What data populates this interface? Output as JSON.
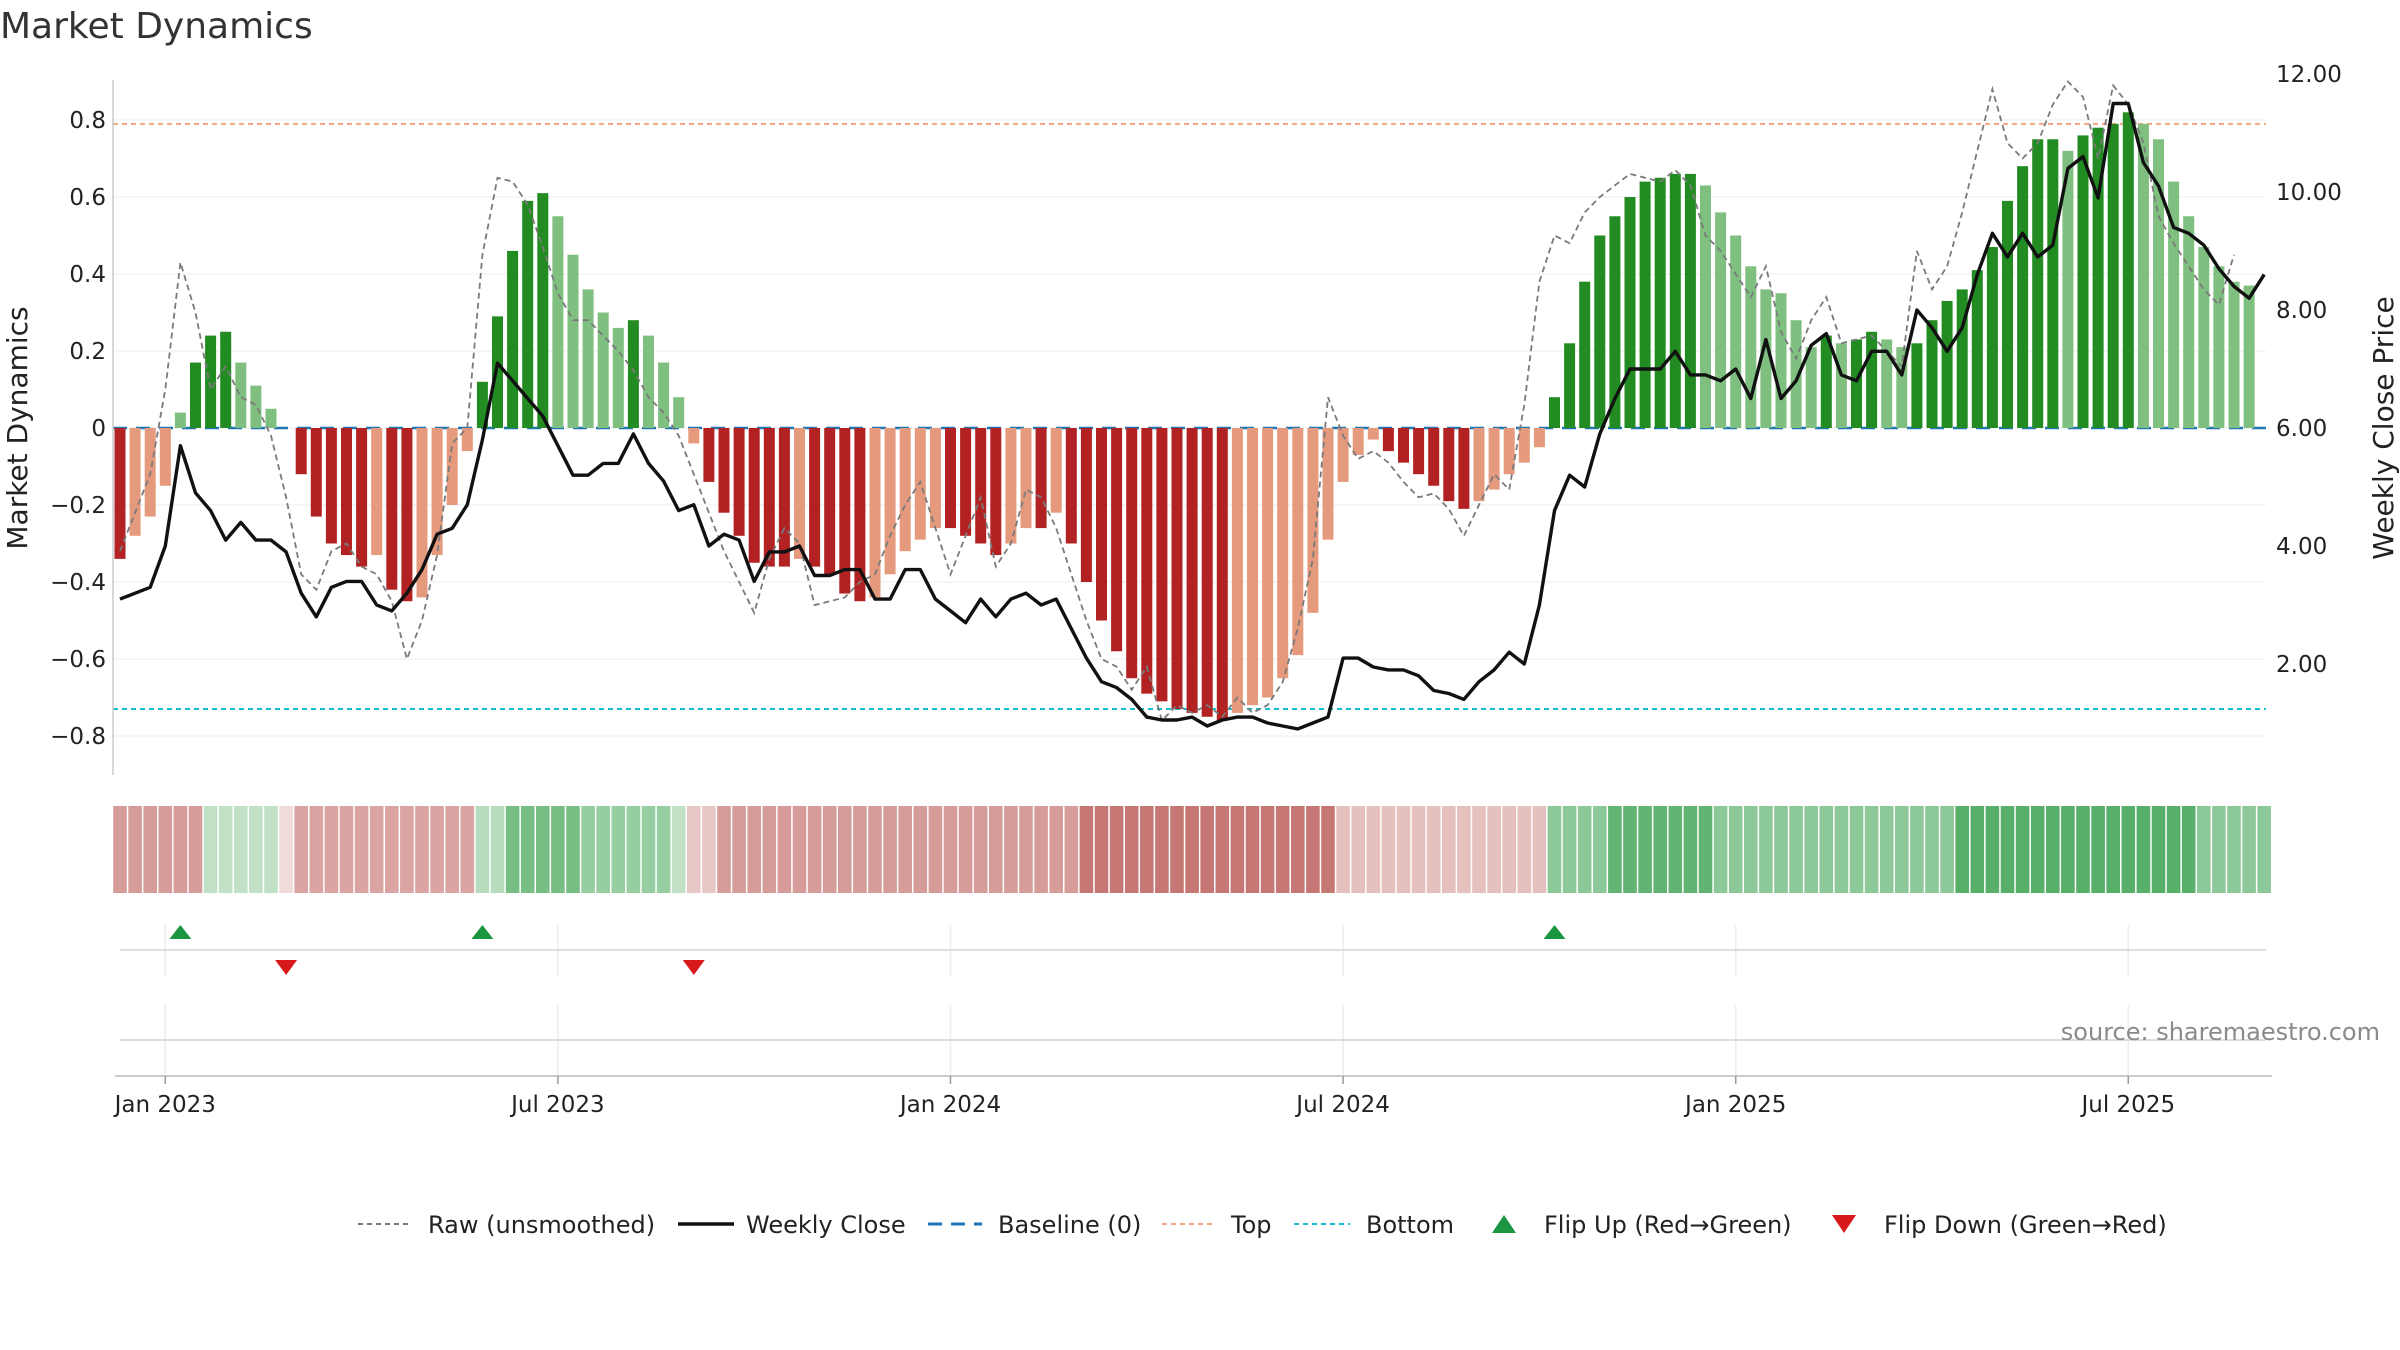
{
  "chart_data": {
    "type": "bar",
    "title": "Market Dynamics",
    "ylabel_left": "Market Dynamics",
    "ylabel_right": "Weekly Close Price",
    "source": "source: sharemaestro.com",
    "ylim_left": [
      -0.9,
      0.9
    ],
    "ylim_right": [
      0.8,
      12.4
    ],
    "left_ticks": [
      "0.8",
      "0.6",
      "0.4",
      "0.2",
      "0",
      "−0.2",
      "−0.4",
      "−0.6",
      "−0.8"
    ],
    "left_tick_values": [
      0.8,
      0.6,
      0.4,
      0.2,
      0,
      -0.2,
      -0.4,
      -0.6,
      -0.8
    ],
    "right_ticks": [
      "12.00",
      "10.00",
      "8.00",
      "6.00",
      "4.00",
      "2.00"
    ],
    "right_tick_values": [
      12,
      10,
      8,
      6,
      4,
      2
    ],
    "x_ticks": [
      "Jan 2023",
      "Jul 2023",
      "Jan 2024",
      "Jul 2024",
      "Jan 2025",
      "Jul 2025"
    ],
    "x_tick_index": [
      3,
      29,
      55,
      81,
      107,
      133
    ],
    "top_level": 0.79,
    "bottom_level": -0.73,
    "colors": {
      "strong_up": "#228b22",
      "weak_up": "#7fbf7f",
      "strong_down": "#b22222",
      "weak_down": "#e59a7d",
      "raw": "#7a7a7a",
      "close": "#111111",
      "baseline": "#1f77b4",
      "top": "#f4a582",
      "bottom": "#17becf",
      "flip_up": "#1a9641",
      "flip_down": "#d7191c"
    },
    "series": [
      {
        "name": "Market Dynamics",
        "values": [
          -0.34,
          -0.28,
          -0.23,
          -0.15,
          0.04,
          0.17,
          0.24,
          0.25,
          0.17,
          0.11,
          0.05,
          0,
          -0.12,
          -0.23,
          -0.3,
          -0.33,
          -0.36,
          -0.33,
          -0.42,
          -0.45,
          -0.44,
          -0.33,
          -0.2,
          -0.06,
          0.12,
          0.29,
          0.46,
          0.59,
          0.61,
          0.55,
          0.45,
          0.36,
          0.3,
          0.26,
          0.28,
          0.24,
          0.17,
          0.08,
          -0.04,
          -0.14,
          -0.22,
          -0.28,
          -0.35,
          -0.36,
          -0.36,
          -0.34,
          -0.36,
          -0.38,
          -0.43,
          -0.45,
          -0.44,
          -0.38,
          -0.32,
          -0.29,
          -0.26,
          -0.26,
          -0.28,
          -0.3,
          -0.33,
          -0.3,
          -0.26,
          -0.26,
          -0.22,
          -0.3,
          -0.4,
          -0.5,
          -0.58,
          -0.65,
          -0.69,
          -0.71,
          -0.73,
          -0.74,
          -0.75,
          -0.76,
          -0.74,
          -0.72,
          -0.7,
          -0.65,
          -0.59,
          -0.48,
          -0.29,
          -0.14,
          -0.07,
          -0.03,
          -0.06,
          -0.09,
          -0.12,
          -0.15,
          -0.19,
          -0.21,
          -0.19,
          -0.16,
          -0.12,
          -0.09,
          -0.05,
          0.08,
          0.22,
          0.38,
          0.5,
          0.55,
          0.6,
          0.64,
          0.65,
          0.66,
          0.66,
          0.63,
          0.56,
          0.5,
          0.42,
          0.36,
          0.35,
          0.28,
          0.21,
          0.24,
          0.22,
          0.23,
          0.25,
          0.23,
          0.21,
          0.22,
          0.28,
          0.33,
          0.36,
          0.41,
          0.47,
          0.59,
          0.68,
          0.75,
          0.75,
          0.72,
          0.76,
          0.78,
          0.79,
          0.82,
          0.79,
          0.75,
          0.64,
          0.55,
          0.47,
          0.42,
          0.38,
          0.37
        ]
      },
      {
        "name": "Raw (unsmoothed)",
        "values": [
          -0.32,
          -0.22,
          -0.12,
          0.1,
          0.43,
          0.3,
          0.1,
          0.16,
          0.08,
          0.06,
          -0.02,
          -0.18,
          -0.38,
          -0.42,
          -0.32,
          -0.3,
          -0.36,
          -0.38,
          -0.45,
          -0.6,
          -0.5,
          -0.33,
          -0.04,
          0.0,
          0.45,
          0.65,
          0.64,
          0.58,
          0.47,
          0.35,
          0.28,
          0.28,
          0.24,
          0.2,
          0.15,
          0.08,
          0.04,
          -0.02,
          -0.12,
          -0.22,
          -0.32,
          -0.4,
          -0.48,
          -0.34,
          -0.26,
          -0.3,
          -0.46,
          -0.45,
          -0.44,
          -0.4,
          -0.38,
          -0.28,
          -0.2,
          -0.14,
          -0.26,
          -0.38,
          -0.28,
          -0.18,
          -0.36,
          -0.3,
          -0.16,
          -0.18,
          -0.26,
          -0.38,
          -0.5,
          -0.6,
          -0.62,
          -0.68,
          -0.62,
          -0.76,
          -0.72,
          -0.74,
          -0.72,
          -0.75,
          -0.7,
          -0.74,
          -0.72,
          -0.66,
          -0.52,
          -0.34,
          0.08,
          -0.02,
          -0.08,
          -0.06,
          -0.09,
          -0.14,
          -0.18,
          -0.17,
          -0.21,
          -0.28,
          -0.2,
          -0.12,
          -0.16,
          0.06,
          0.38,
          0.5,
          0.48,
          0.56,
          0.6,
          0.63,
          0.66,
          0.65,
          0.64,
          0.67,
          0.63,
          0.5,
          0.46,
          0.4,
          0.34,
          0.42,
          0.25,
          0.18,
          0.28,
          0.34,
          0.22,
          0.23,
          0.24,
          0.2,
          0.16,
          0.46,
          0.36,
          0.42,
          0.56,
          0.72,
          0.88,
          0.74,
          0.7,
          0.74,
          0.84,
          0.9,
          0.86,
          0.7,
          0.89,
          0.84,
          0.74,
          0.55,
          0.48,
          0.42,
          0.36,
          0.32,
          0.45
        ]
      },
      {
        "name": "Weekly Close",
        "values": [
          3.1,
          3.2,
          3.3,
          4.0,
          5.7,
          4.9,
          4.6,
          4.1,
          4.4,
          4.1,
          4.1,
          3.9,
          3.2,
          2.8,
          3.3,
          3.4,
          3.4,
          3.0,
          2.9,
          3.2,
          3.6,
          4.2,
          4.3,
          4.7,
          5.8,
          7.1,
          6.8,
          6.5,
          6.2,
          5.7,
          5.2,
          5.2,
          5.4,
          5.4,
          5.9,
          5.4,
          5.1,
          4.6,
          4.7,
          4.0,
          4.2,
          4.1,
          3.4,
          3.9,
          3.9,
          4.0,
          3.5,
          3.5,
          3.6,
          3.6,
          3.1,
          3.1,
          3.6,
          3.6,
          3.1,
          2.9,
          2.7,
          3.1,
          2.8,
          3.1,
          3.2,
          3.0,
          3.1,
          2.6,
          2.1,
          1.7,
          1.6,
          1.4,
          1.1,
          1.05,
          1.05,
          1.1,
          0.95,
          1.05,
          1.1,
          1.1,
          1.0,
          0.95,
          0.9,
          1.0,
          1.1,
          2.1,
          2.1,
          1.95,
          1.9,
          1.9,
          1.8,
          1.55,
          1.5,
          1.4,
          1.7,
          1.9,
          2.2,
          2.0,
          3.0,
          4.6,
          5.2,
          5.0,
          5.9,
          6.5,
          7.0,
          7.0,
          7.0,
          7.3,
          6.9,
          6.9,
          6.8,
          7.0,
          6.5,
          7.5,
          6.5,
          6.8,
          7.4,
          7.6,
          6.9,
          6.8,
          7.3,
          7.3,
          6.9,
          8.0,
          7.7,
          7.3,
          7.7,
          8.6,
          9.3,
          8.9,
          9.3,
          8.9,
          9.1,
          10.4,
          10.6,
          9.9,
          11.5,
          11.5,
          10.5,
          10.1,
          9.4,
          9.3,
          9.1,
          8.7,
          8.4,
          8.2,
          8.6
        ]
      },
      {
        "name": "Baseline (0)"
      },
      {
        "name": "Top"
      },
      {
        "name": "Bottom"
      }
    ],
    "band": {
      "name": "regime-strip",
      "segments": [
        {
          "from": 0,
          "to": 5,
          "state": "down",
          "alpha": 0.55
        },
        {
          "from": 6,
          "to": 10,
          "state": "up",
          "alpha": 0.3
        },
        {
          "from": 11,
          "to": 11,
          "state": "down",
          "alpha": 0.2
        },
        {
          "from": 12,
          "to": 23,
          "state": "down",
          "alpha": 0.5
        },
        {
          "from": 24,
          "to": 25,
          "state": "up",
          "alpha": 0.35
        },
        {
          "from": 26,
          "to": 30,
          "state": "up",
          "alpha": 0.65
        },
        {
          "from": 31,
          "to": 36,
          "state": "up",
          "alpha": 0.5
        },
        {
          "from": 37,
          "to": 37,
          "state": "up",
          "alpha": 0.3
        },
        {
          "from": 38,
          "to": 39,
          "state": "down",
          "alpha": 0.3
        },
        {
          "from": 40,
          "to": 63,
          "state": "down",
          "alpha": 0.55
        },
        {
          "from": 64,
          "to": 80,
          "state": "down",
          "alpha": 0.75
        },
        {
          "from": 81,
          "to": 94,
          "state": "down",
          "alpha": 0.35
        },
        {
          "from": 95,
          "to": 98,
          "state": "up",
          "alpha": 0.55
        },
        {
          "from": 99,
          "to": 105,
          "state": "up",
          "alpha": 0.75
        },
        {
          "from": 106,
          "to": 121,
          "state": "up",
          "alpha": 0.55
        },
        {
          "from": 122,
          "to": 137,
          "state": "up",
          "alpha": 0.8
        },
        {
          "from": 138,
          "to": 142,
          "state": "up",
          "alpha": 0.55
        }
      ]
    },
    "flips": [
      {
        "index": 4,
        "direction": "up"
      },
      {
        "index": 11,
        "direction": "down"
      },
      {
        "index": 24,
        "direction": "up"
      },
      {
        "index": 38,
        "direction": "down"
      },
      {
        "index": 95,
        "direction": "up"
      }
    ],
    "legend_position": "bottom-center"
  }
}
